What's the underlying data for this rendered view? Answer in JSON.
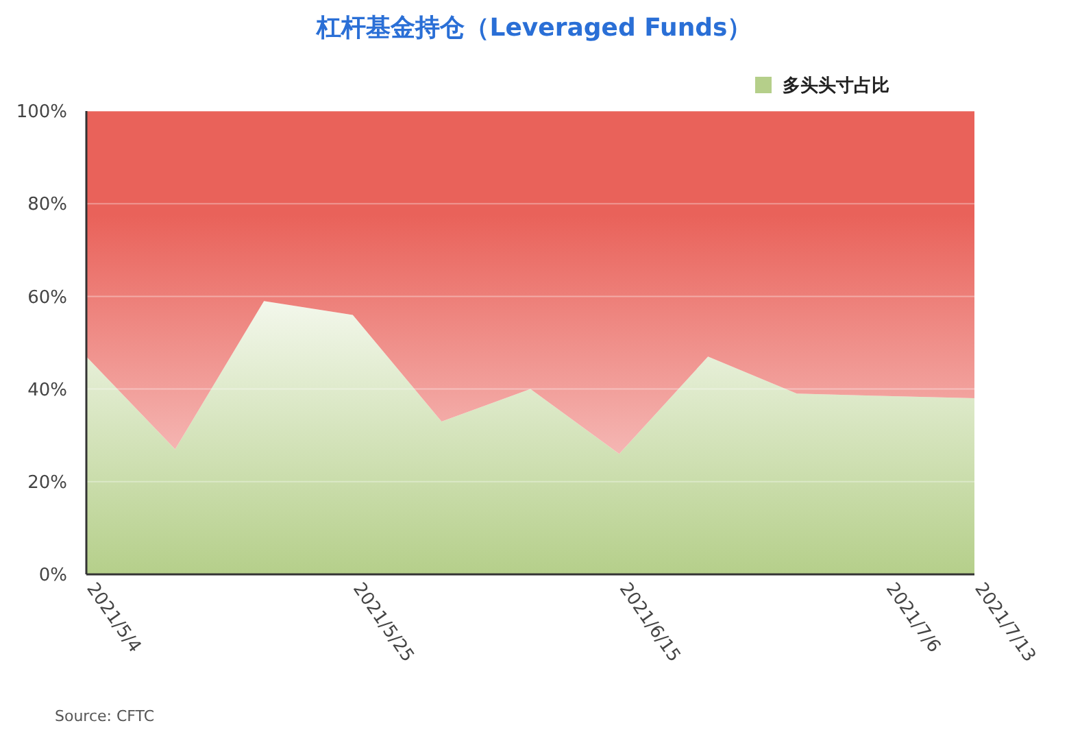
{
  "chart_data": {
    "type": "area",
    "title": "杠杆基金持仓（Leveraged Funds）",
    "stacked": true,
    "x": [
      "2021-05-04",
      "2021-05-11",
      "2021-05-18",
      "2021-05-25",
      "2021-06-01",
      "2021-06-08",
      "2021-06-15",
      "2021-06-22",
      "2021-06-29",
      "2021-07-06",
      "2021-07-13"
    ],
    "series": [
      {
        "name": "多头头寸占比",
        "color": "#b5cf8a",
        "values": [
          47,
          27,
          59,
          56,
          33,
          40,
          26,
          47,
          39,
          38.5,
          38
        ]
      },
      {
        "color": "#e9625a",
        "values": [
          53,
          73,
          41,
          44,
          67,
          60,
          74,
          53,
          61,
          61.5,
          62
        ]
      }
    ],
    "xlim": [
      "2021-05-04",
      "2021-07-13"
    ],
    "xticks": [
      {
        "value": "2021-05-04",
        "label": "2021/5/4"
      },
      {
        "value": "2021-05-25",
        "label": "2021/5/25"
      },
      {
        "value": "2021-06-15",
        "label": "2021/6/15"
      },
      {
        "value": "2021-07-06",
        "label": "2021/7/6"
      },
      {
        "value": "2021-07-13",
        "label": "2021/7/13"
      }
    ],
    "ylim": [
      0,
      100
    ],
    "yticks": [
      {
        "value": 0,
        "label": "0%"
      },
      {
        "value": 20,
        "label": "20%"
      },
      {
        "value": 40,
        "label": "40%"
      },
      {
        "value": 60,
        "label": "60%"
      },
      {
        "value": 80,
        "label": "80%"
      },
      {
        "value": 100,
        "label": "100%"
      }
    ],
    "grid": "y",
    "legend": "top right",
    "annotations": [
      "Source: CFTC"
    ]
  }
}
